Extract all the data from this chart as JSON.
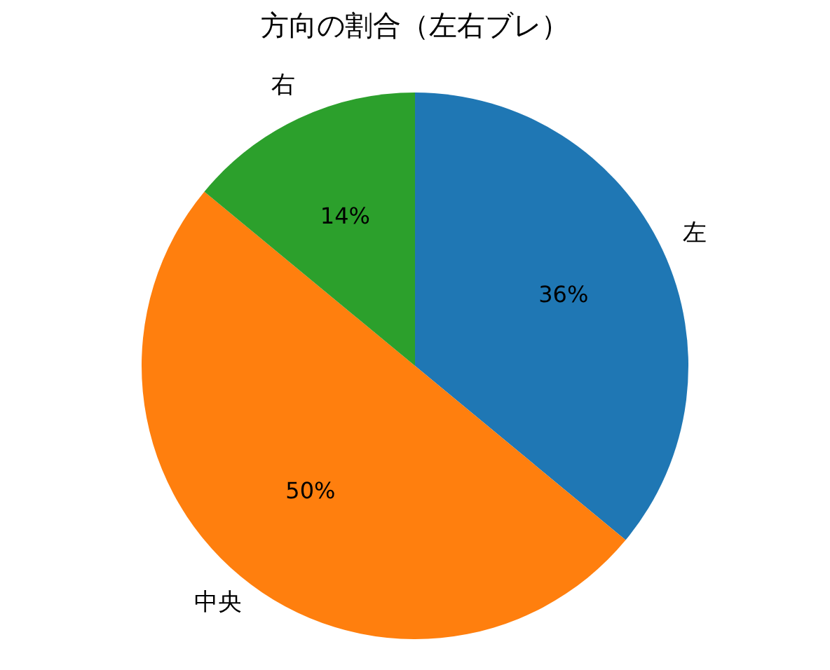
{
  "chart_data": {
    "type": "pie",
    "title": "方向の割合（左右ブレ）",
    "categories": [
      "左",
      "中央",
      "右"
    ],
    "values": [
      36,
      50,
      14
    ],
    "value_labels": [
      "36%",
      "50%",
      "14%"
    ],
    "colors": [
      "#1f77b4",
      "#ff7f0e",
      "#2ca02c"
    ],
    "legend": false
  }
}
